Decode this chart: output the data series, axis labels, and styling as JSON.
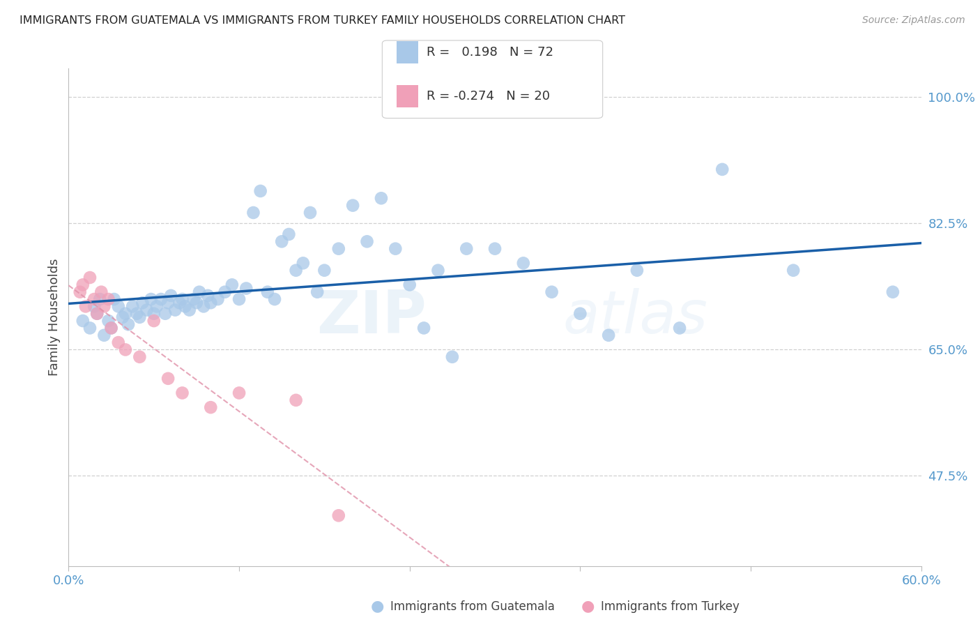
{
  "title": "IMMIGRANTS FROM GUATEMALA VS IMMIGRANTS FROM TURKEY FAMILY HOUSEHOLDS CORRELATION CHART",
  "source": "Source: ZipAtlas.com",
  "ylabel": "Family Households",
  "xlim": [
    0.0,
    0.6
  ],
  "ylim": [
    0.35,
    1.04
  ],
  "y_ticks": [
    0.475,
    0.65,
    0.825,
    1.0
  ],
  "y_tick_labels": [
    "47.5%",
    "65.0%",
    "82.5%",
    "100.0%"
  ],
  "guatemala_color": "#a8c8e8",
  "turkey_color": "#f0a0b8",
  "guatemala_line_color": "#1a5fa8",
  "turkey_line_color": "#e8708090",
  "legend_r_guatemala": "R =   0.198",
  "legend_n_guatemala": "N = 72",
  "legend_r_turkey": "R = -0.274",
  "legend_n_turkey": "N = 20",
  "watermark": "ZIPatlas",
  "guatemala_x": [
    0.01,
    0.015,
    0.018,
    0.02,
    0.022,
    0.025,
    0.028,
    0.03,
    0.032,
    0.035,
    0.038,
    0.04,
    0.042,
    0.045,
    0.048,
    0.05,
    0.052,
    0.055,
    0.058,
    0.06,
    0.062,
    0.065,
    0.068,
    0.07,
    0.072,
    0.075,
    0.078,
    0.08,
    0.082,
    0.085,
    0.088,
    0.09,
    0.092,
    0.095,
    0.098,
    0.1,
    0.105,
    0.11,
    0.115,
    0.12,
    0.125,
    0.13,
    0.135,
    0.14,
    0.145,
    0.15,
    0.155,
    0.16,
    0.165,
    0.17,
    0.175,
    0.18,
    0.19,
    0.2,
    0.21,
    0.22,
    0.23,
    0.24,
    0.25,
    0.26,
    0.27,
    0.28,
    0.3,
    0.32,
    0.34,
    0.36,
    0.38,
    0.4,
    0.43,
    0.46,
    0.51,
    0.58
  ],
  "guatemala_y": [
    0.69,
    0.68,
    0.71,
    0.7,
    0.72,
    0.67,
    0.69,
    0.68,
    0.72,
    0.71,
    0.695,
    0.7,
    0.685,
    0.71,
    0.7,
    0.695,
    0.715,
    0.705,
    0.72,
    0.7,
    0.71,
    0.72,
    0.7,
    0.715,
    0.725,
    0.705,
    0.715,
    0.72,
    0.71,
    0.705,
    0.72,
    0.715,
    0.73,
    0.71,
    0.725,
    0.715,
    0.72,
    0.73,
    0.74,
    0.72,
    0.735,
    0.84,
    0.87,
    0.73,
    0.72,
    0.8,
    0.81,
    0.76,
    0.77,
    0.84,
    0.73,
    0.76,
    0.79,
    0.85,
    0.8,
    0.86,
    0.79,
    0.74,
    0.68,
    0.76,
    0.64,
    0.79,
    0.79,
    0.77,
    0.73,
    0.7,
    0.67,
    0.76,
    0.68,
    0.9,
    0.76,
    0.73
  ],
  "turkey_x": [
    0.008,
    0.01,
    0.012,
    0.015,
    0.018,
    0.02,
    0.023,
    0.025,
    0.028,
    0.03,
    0.035,
    0.04,
    0.05,
    0.06,
    0.07,
    0.08,
    0.1,
    0.12,
    0.16,
    0.19
  ],
  "turkey_y": [
    0.73,
    0.74,
    0.71,
    0.75,
    0.72,
    0.7,
    0.73,
    0.71,
    0.72,
    0.68,
    0.66,
    0.65,
    0.64,
    0.69,
    0.61,
    0.59,
    0.57,
    0.59,
    0.58,
    0.42
  ],
  "background_color": "#ffffff",
  "grid_color": "#d0d0d0"
}
